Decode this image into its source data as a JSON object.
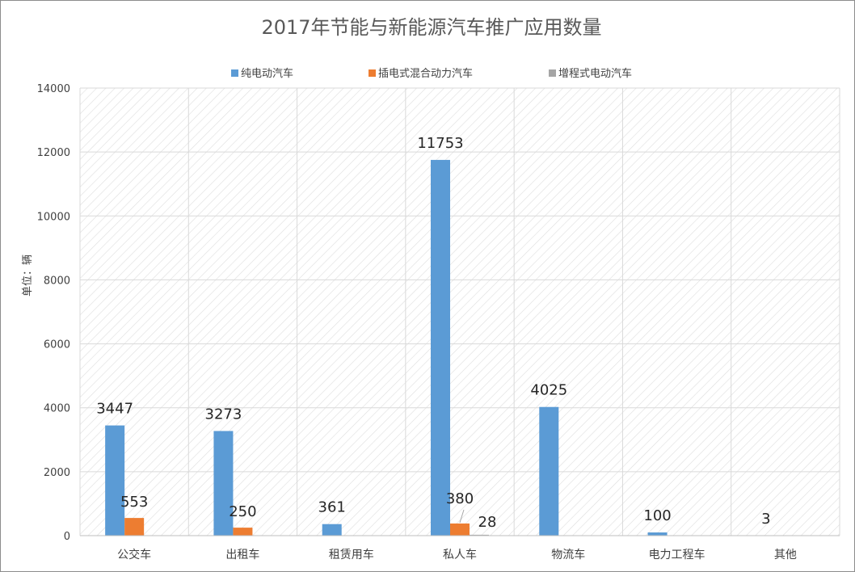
{
  "chart_data": {
    "type": "bar",
    "title": "2017年节能与新能源汽车推广应用数量",
    "ylabel": "单位：辆",
    "xlabel": "",
    "ylim": [
      0,
      14000
    ],
    "yticks": [
      0,
      2000,
      4000,
      6000,
      8000,
      10000,
      12000,
      14000
    ],
    "grid": true,
    "legend_position": "top",
    "categories": [
      "公交车",
      "出租车",
      "租赁用车",
      "私人车",
      "物流车",
      "电力工程车",
      "其他"
    ],
    "series": [
      {
        "name": "纯电动汽车",
        "color": "#5b9bd5",
        "values": [
          3447,
          3273,
          361,
          11753,
          4025,
          100,
          3
        ]
      },
      {
        "name": "插电式混合动力汽车",
        "color": "#ed7d31",
        "values": [
          553,
          250,
          null,
          380,
          null,
          null,
          null
        ]
      },
      {
        "name": "增程式电动汽车",
        "color": "#a5a5a5",
        "values": [
          null,
          null,
          null,
          28,
          null,
          null,
          null
        ]
      }
    ],
    "data_labels": [
      {
        "series": 0,
        "category": 0,
        "text": "3447"
      },
      {
        "series": 0,
        "category": 1,
        "text": "3273"
      },
      {
        "series": 0,
        "category": 2,
        "text": "361"
      },
      {
        "series": 0,
        "category": 3,
        "text": "11753"
      },
      {
        "series": 0,
        "category": 4,
        "text": "4025"
      },
      {
        "series": 0,
        "category": 5,
        "text": "100"
      },
      {
        "series": 0,
        "category": 6,
        "text": "3"
      },
      {
        "series": 1,
        "category": 0,
        "text": "553"
      },
      {
        "series": 1,
        "category": 1,
        "text": "250"
      },
      {
        "series": 1,
        "category": 3,
        "text": "380"
      },
      {
        "series": 2,
        "category": 3,
        "text": "28"
      }
    ]
  }
}
